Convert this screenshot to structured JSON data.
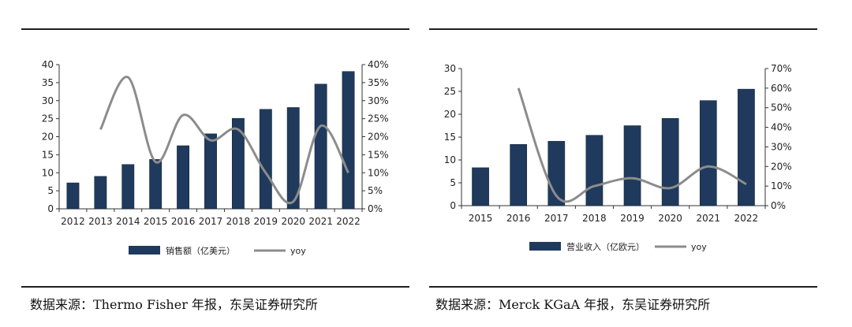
{
  "colors": {
    "bar": "#1f3a5c",
    "line": "#8c8c8c",
    "axis": "#333333"
  },
  "chart_data": [
    {
      "type": "bar",
      "categories": [
        "2012",
        "2013",
        "2014",
        "2015",
        "2016",
        "2017",
        "2018",
        "2019",
        "2020",
        "2021",
        "2022"
      ],
      "series": [
        {
          "name": "销售额（亿美元）",
          "type": "bar",
          "axis": "left",
          "values": [
            7.2,
            9,
            12.3,
            13.7,
            17.5,
            20.8,
            25.1,
            27.6,
            28.1,
            34.6,
            38.1
          ]
        },
        {
          "name": "yoy",
          "type": "line",
          "axis": "right",
          "values": [
            null,
            22,
            36.5,
            13,
            26,
            19,
            22,
            10,
            2,
            23,
            10
          ]
        }
      ],
      "ylim_left": [
        0,
        40
      ],
      "yticks_left": [
        "0",
        "5",
        "10",
        "15",
        "20",
        "25",
        "30",
        "35",
        "40"
      ],
      "ylim_right": [
        0,
        40
      ],
      "yticks_right": [
        "0%",
        "5%",
        "10%",
        "15%",
        "20%",
        "25%",
        "30%",
        "35%",
        "40%"
      ],
      "legend": {
        "bar_label": "销售额（亿美元）",
        "line_label": "yoy"
      },
      "source": "数据来源：Thermo Fisher 年报，东吴证券研究所"
    },
    {
      "type": "bar",
      "categories": [
        "2015",
        "2016",
        "2017",
        "2018",
        "2019",
        "2020",
        "2021",
        "2022"
      ],
      "series": [
        {
          "name": "营业收入（亿欧元）",
          "type": "bar",
          "axis": "left",
          "values": [
            8.3,
            13.4,
            14.1,
            15.4,
            17.5,
            19.1,
            23,
            25.5
          ]
        },
        {
          "name": "yoy",
          "type": "line",
          "axis": "right",
          "values": [
            null,
            60,
            5,
            10,
            14,
            9,
            20,
            11
          ]
        }
      ],
      "ylim_left": [
        0,
        30
      ],
      "yticks_left": [
        "0",
        "5",
        "10",
        "15",
        "20",
        "25",
        "30"
      ],
      "ylim_right": [
        0,
        70
      ],
      "yticks_right": [
        "0%",
        "10%",
        "20%",
        "30%",
        "40%",
        "50%",
        "60%",
        "70%"
      ],
      "legend": {
        "bar_label": "营业收入（亿欧元）",
        "line_label": "yoy"
      },
      "source": "数据来源：Merck KGaA 年报，东吴证券研究所"
    }
  ]
}
